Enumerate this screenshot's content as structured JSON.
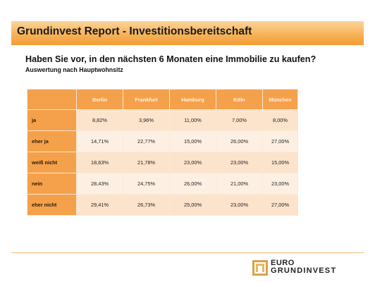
{
  "header": {
    "title": "Grundinvest Report - Investitionsbereitschaft"
  },
  "question": "Haben Sie vor, in den nächsten 6 Monaten eine Immobilie zu kaufen?",
  "subtitle": "Auswertung nach Hauptwohnsitz",
  "table": {
    "columns": [
      "",
      "Berlin",
      "Frankfurt",
      "Hamburg",
      "Köln",
      "München"
    ],
    "rows": [
      {
        "label": "ja",
        "values": [
          "8,82%",
          "3,96%",
          "11,00%",
          "7,00%",
          "8,00%"
        ]
      },
      {
        "label": "eher ja",
        "values": [
          "14,71%",
          "22,77%",
          "15,00%",
          "26,00%",
          "27,00%"
        ]
      },
      {
        "label": "weiß nicht",
        "values": [
          "18,63%",
          "21,78%",
          "23,00%",
          "23,00%",
          "15,00%"
        ]
      },
      {
        "label": "nein",
        "values": [
          "28,43%",
          "24,75%",
          "26,00%",
          "21,00%",
          "23,00%"
        ]
      },
      {
        "label": "eher nicht",
        "values": [
          "29,41%",
          "26,73%",
          "25,00%",
          "23,00%",
          "27,00%"
        ]
      }
    ]
  },
  "logo": {
    "line1": "EURO",
    "line2": "GRUNDINVEST",
    "icon": "building-logo-icon"
  },
  "colors": {
    "accent": "#f5a14b",
    "header_gradient_end": "#f29c33",
    "cell_light": "#fdf0e3",
    "cell_mid": "#fce3cc"
  }
}
